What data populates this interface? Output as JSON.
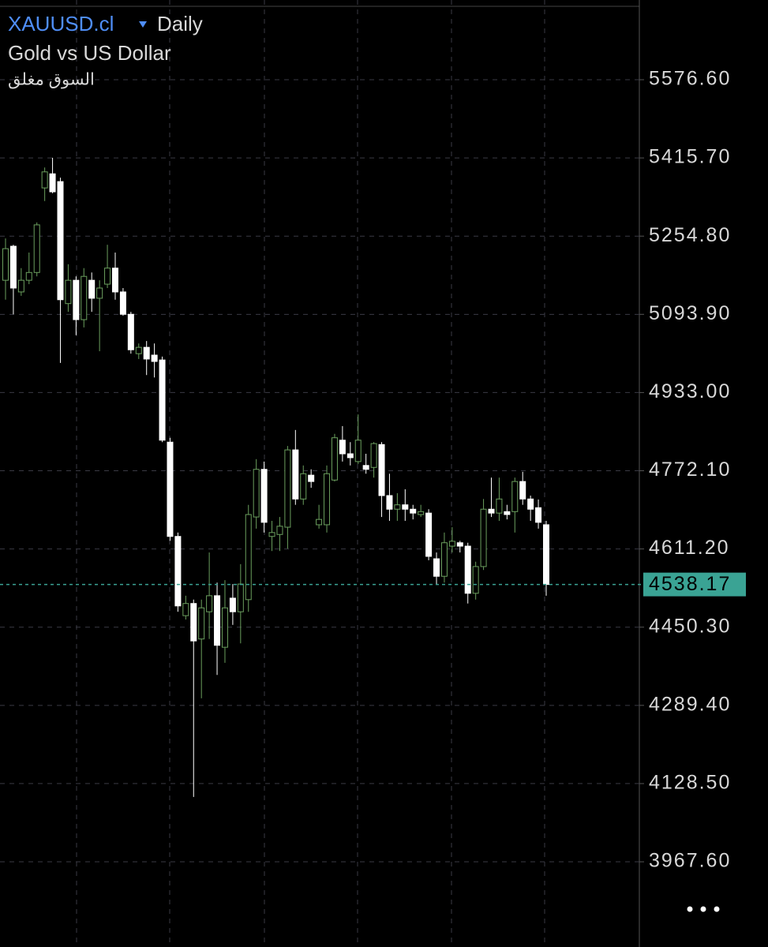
{
  "header": {
    "symbol": "XAUUSD.cl",
    "timeframe": "Daily",
    "description": "Gold vs US Dollar",
    "status": "السوق مغلق"
  },
  "chart_data": {
    "type": "candlestick",
    "open": [
      5164,
      5234,
      5140,
      5164,
      5180,
      5354,
      5383,
      5367,
      5116,
      5164,
      5083,
      5164,
      5127,
      5156,
      5189,
      5140,
      5094,
      5013,
      5026,
      5010,
      5000,
      4831,
      4637,
      4474,
      4499,
      4426,
      4482,
      4515,
      4409,
      4510,
      4482,
      4507,
      4677,
      4775,
      4637,
      4641,
      4656,
      4815,
      4714,
      4763,
      4661,
      4661,
      4753,
      4835,
      4807,
      4791,
      4783,
      4779,
      4826,
      4721,
      4693,
      4702,
      4693,
      4682,
      4685,
      4591,
      4555,
      4617,
      4624,
      4617,
      4520,
      4575,
      4693,
      4685,
      4688,
      4688,
      4750,
      4714,
      4696,
      4661
    ],
    "high": [
      5250,
      5237,
      5189,
      5221,
      5283,
      5396,
      5416,
      5375,
      5197,
      5172,
      5189,
      5180,
      5164,
      5237,
      5221,
      5148,
      5099,
      5034,
      5039,
      5034,
      5007,
      4840,
      4645,
      4515,
      4507,
      4507,
      4604,
      4542,
      4547,
      4539,
      4580,
      4702,
      4796,
      4791,
      4669,
      4677,
      4823,
      4856,
      4783,
      4775,
      4702,
      4783,
      4848,
      4864,
      4831,
      4888,
      4807,
      4831,
      4831,
      4766,
      4726,
      4734,
      4702,
      4702,
      4693,
      4604,
      4645,
      4656,
      4628,
      4624,
      4585,
      4714,
      4758,
      4758,
      4702,
      4758,
      4770,
      4721,
      4713,
      4669
    ],
    "low": [
      5124,
      5094,
      5132,
      5156,
      5172,
      5327,
      5343,
      4994,
      5099,
      5051,
      5067,
      5099,
      5018,
      5148,
      5124,
      5091,
      5013,
      5002,
      4969,
      4964,
      4831,
      4628,
      4482,
      4466,
      4101,
      4304,
      4426,
      4352,
      4377,
      4455,
      4417,
      4482,
      4653,
      4645,
      4607,
      4607,
      4612,
      4702,
      4702,
      4737,
      4653,
      4645,
      4750,
      4791,
      4783,
      4786,
      4766,
      4758,
      4677,
      4669,
      4669,
      4669,
      4672,
      4677,
      4588,
      4539,
      4542,
      4604,
      4604,
      4499,
      4507,
      4568,
      4677,
      4669,
      4672,
      4645,
      4702,
      4669,
      4653,
      4515
    ],
    "close": [
      5229,
      5148,
      5164,
      5180,
      5278,
      5387,
      5346,
      5124,
      5164,
      5083,
      5172,
      5127,
      5148,
      5189,
      5140,
      5094,
      5021,
      5026,
      5002,
      4997,
      4835,
      4637,
      4494,
      4499,
      4422,
      4490,
      4515,
      4413,
      4490,
      4482,
      4539,
      4682,
      4775,
      4666,
      4645,
      4658,
      4815,
      4714,
      4766,
      4750,
      4672,
      4766,
      4840,
      4807,
      4799,
      4835,
      4775,
      4828,
      4721,
      4693,
      4702,
      4693,
      4685,
      4688,
      4596,
      4555,
      4624,
      4627,
      4617,
      4520,
      4575,
      4693,
      4685,
      4714,
      4682,
      4750,
      4714,
      4693,
      4666,
      4538.17
    ],
    "up_color": "#6b9f5e",
    "down_color": "#ffffff",
    "ylim": [
      3792.3,
      5740.6
    ],
    "yticks": [
      {
        "value": 5576.6,
        "label": "5576.60"
      },
      {
        "value": 5415.7,
        "label": "5415.70"
      },
      {
        "value": 5254.8,
        "label": "5254.80"
      },
      {
        "value": 5093.9,
        "label": "5093.90"
      },
      {
        "value": 4933,
        "label": "4933.00"
      },
      {
        "value": 4772.1,
        "label": "4772.10"
      },
      {
        "value": 4611.2,
        "label": "4611.20"
      },
      {
        "value": 4450.3,
        "label": "4450.30"
      },
      {
        "value": 4289.4,
        "label": "4289.40"
      },
      {
        "value": 4128.5,
        "label": "4128.50"
      },
      {
        "value": 3967.6,
        "label": "3967.60"
      }
    ],
    "last_price": 4538.17,
    "last_price_color": "#3aa394",
    "grid": true
  }
}
